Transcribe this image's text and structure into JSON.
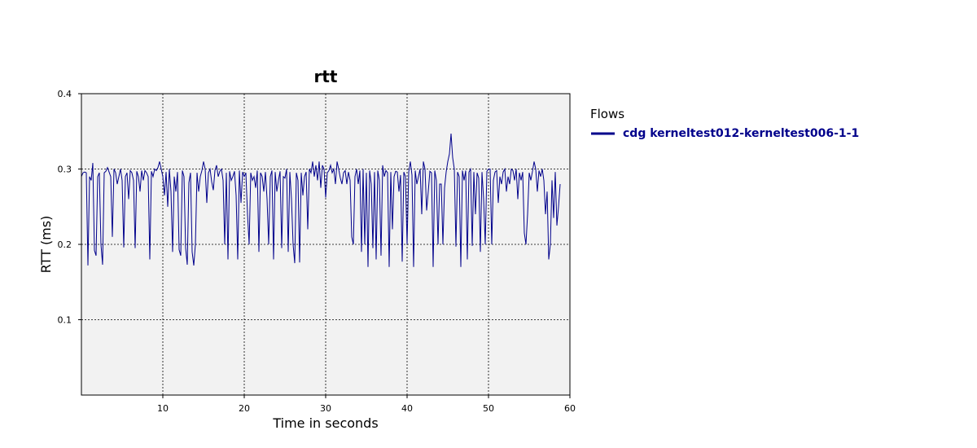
{
  "chart_data": {
    "type": "line",
    "title": "rtt",
    "xlabel": "Time in seconds",
    "ylabel": "RTT (ms)",
    "xlim": [
      0,
      60
    ],
    "ylim": [
      0,
      0.4
    ],
    "x_ticks": [
      "10",
      "20",
      "30",
      "40",
      "50",
      "60"
    ],
    "x_tick_values": [
      10,
      20,
      30,
      40,
      50,
      60
    ],
    "y_ticks": [
      "0.1",
      "0.2",
      "0.3",
      "0.4"
    ],
    "y_tick_values": [
      0.1,
      0.2,
      0.3,
      0.4
    ],
    "grid": true,
    "plot_background": "#f2f2f2",
    "legend": {
      "title": "Flows",
      "position": "right"
    },
    "series": [
      {
        "name": "cdg kerneltest012-kerneltest006-1-1",
        "color": "#00008b",
        "points": [
          [
            0.0,
            0.29
          ],
          [
            0.2,
            0.295
          ],
          [
            0.4,
            0.296
          ],
          [
            0.6,
            0.295
          ],
          [
            0.8,
            0.172
          ],
          [
            1.0,
            0.29
          ],
          [
            1.2,
            0.285
          ],
          [
            1.4,
            0.308
          ],
          [
            1.6,
            0.192
          ],
          [
            1.8,
            0.185
          ],
          [
            2.0,
            0.29
          ],
          [
            2.2,
            0.295
          ],
          [
            2.4,
            0.2
          ],
          [
            2.6,
            0.173
          ],
          [
            2.8,
            0.295
          ],
          [
            3.0,
            0.297
          ],
          [
            3.2,
            0.302
          ],
          [
            3.4,
            0.296
          ],
          [
            3.6,
            0.29
          ],
          [
            3.8,
            0.21
          ],
          [
            4.0,
            0.3
          ],
          [
            4.2,
            0.295
          ],
          [
            4.4,
            0.28
          ],
          [
            4.6,
            0.29
          ],
          [
            4.8,
            0.3
          ],
          [
            5.0,
            0.285
          ],
          [
            5.2,
            0.196
          ],
          [
            5.4,
            0.29
          ],
          [
            5.6,
            0.295
          ],
          [
            5.8,
            0.26
          ],
          [
            6.0,
            0.298
          ],
          [
            6.2,
            0.295
          ],
          [
            6.4,
            0.285
          ],
          [
            6.6,
            0.195
          ],
          [
            6.8,
            0.297
          ],
          [
            7.0,
            0.29
          ],
          [
            7.2,
            0.27
          ],
          [
            7.4,
            0.298
          ],
          [
            7.6,
            0.285
          ],
          [
            7.8,
            0.298
          ],
          [
            8.0,
            0.295
          ],
          [
            8.2,
            0.29
          ],
          [
            8.4,
            0.18
          ],
          [
            8.6,
            0.297
          ],
          [
            8.8,
            0.29
          ],
          [
            9.0,
            0.3
          ],
          [
            9.2,
            0.298
          ],
          [
            9.4,
            0.302
          ],
          [
            9.6,
            0.31
          ],
          [
            9.8,
            0.3
          ],
          [
            10.0,
            0.29
          ],
          [
            10.2,
            0.265
          ],
          [
            10.4,
            0.296
          ],
          [
            10.6,
            0.25
          ],
          [
            10.8,
            0.3
          ],
          [
            11.0,
            0.27
          ],
          [
            11.2,
            0.19
          ],
          [
            11.4,
            0.29
          ],
          [
            11.6,
            0.27
          ],
          [
            11.8,
            0.296
          ],
          [
            12.0,
            0.193
          ],
          [
            12.2,
            0.185
          ],
          [
            12.4,
            0.298
          ],
          [
            12.6,
            0.29
          ],
          [
            12.8,
            0.195
          ],
          [
            13.0,
            0.173
          ],
          [
            13.2,
            0.282
          ],
          [
            13.4,
            0.295
          ],
          [
            13.6,
            0.19
          ],
          [
            13.8,
            0.172
          ],
          [
            14.0,
            0.2
          ],
          [
            14.2,
            0.295
          ],
          [
            14.4,
            0.27
          ],
          [
            14.6,
            0.29
          ],
          [
            14.8,
            0.298
          ],
          [
            15.0,
            0.31
          ],
          [
            15.2,
            0.3
          ],
          [
            15.4,
            0.255
          ],
          [
            15.6,
            0.295
          ],
          [
            15.8,
            0.3
          ],
          [
            16.0,
            0.283
          ],
          [
            16.2,
            0.272
          ],
          [
            16.4,
            0.298
          ],
          [
            16.6,
            0.305
          ],
          [
            16.8,
            0.29
          ],
          [
            17.0,
            0.297
          ],
          [
            17.2,
            0.3
          ],
          [
            17.4,
            0.285
          ],
          [
            17.6,
            0.2
          ],
          [
            17.8,
            0.295
          ],
          [
            18.0,
            0.18
          ],
          [
            18.2,
            0.297
          ],
          [
            18.4,
            0.285
          ],
          [
            18.6,
            0.29
          ],
          [
            18.8,
            0.297
          ],
          [
            19.0,
            0.265
          ],
          [
            19.2,
            0.18
          ],
          [
            19.4,
            0.298
          ],
          [
            19.6,
            0.255
          ],
          [
            19.8,
            0.296
          ],
          [
            20.0,
            0.29
          ],
          [
            20.2,
            0.295
          ],
          [
            20.4,
            0.24
          ],
          [
            20.6,
            0.2
          ],
          [
            20.8,
            0.295
          ],
          [
            21.0,
            0.285
          ],
          [
            21.2,
            0.29
          ],
          [
            21.4,
            0.275
          ],
          [
            21.6,
            0.298
          ],
          [
            21.8,
            0.19
          ],
          [
            22.0,
            0.295
          ],
          [
            22.2,
            0.29
          ],
          [
            22.4,
            0.27
          ],
          [
            22.6,
            0.296
          ],
          [
            22.8,
            0.26
          ],
          [
            23.0,
            0.2
          ],
          [
            23.2,
            0.29
          ],
          [
            23.4,
            0.298
          ],
          [
            23.6,
            0.18
          ],
          [
            23.8,
            0.296
          ],
          [
            24.0,
            0.27
          ],
          [
            24.2,
            0.285
          ],
          [
            24.4,
            0.297
          ],
          [
            24.6,
            0.195
          ],
          [
            24.8,
            0.29
          ],
          [
            25.0,
            0.288
          ],
          [
            25.2,
            0.3
          ],
          [
            25.4,
            0.19
          ],
          [
            25.6,
            0.296
          ],
          [
            25.8,
            0.26
          ],
          [
            26.0,
            0.2
          ],
          [
            26.2,
            0.175
          ],
          [
            26.4,
            0.295
          ],
          [
            26.6,
            0.285
          ],
          [
            26.8,
            0.176
          ],
          [
            27.0,
            0.295
          ],
          [
            27.2,
            0.265
          ],
          [
            27.4,
            0.29
          ],
          [
            27.6,
            0.296
          ],
          [
            27.8,
            0.22
          ],
          [
            28.0,
            0.3
          ],
          [
            28.2,
            0.295
          ],
          [
            28.4,
            0.31
          ],
          [
            28.6,
            0.29
          ],
          [
            28.8,
            0.305
          ],
          [
            29.0,
            0.285
          ],
          [
            29.2,
            0.31
          ],
          [
            29.4,
            0.275
          ],
          [
            29.6,
            0.305
          ],
          [
            29.8,
            0.3
          ],
          [
            30.0,
            0.262
          ],
          [
            30.2,
            0.295
          ],
          [
            30.4,
            0.298
          ],
          [
            30.6,
            0.305
          ],
          [
            30.8,
            0.295
          ],
          [
            31.0,
            0.3
          ],
          [
            31.2,
            0.28
          ],
          [
            31.4,
            0.31
          ],
          [
            31.6,
            0.3
          ],
          [
            31.8,
            0.288
          ],
          [
            32.0,
            0.28
          ],
          [
            32.2,
            0.295
          ],
          [
            32.4,
            0.298
          ],
          [
            32.6,
            0.28
          ],
          [
            32.8,
            0.296
          ],
          [
            33.0,
            0.285
          ],
          [
            33.2,
            0.21
          ],
          [
            33.4,
            0.2
          ],
          [
            33.6,
            0.29
          ],
          [
            33.8,
            0.3
          ],
          [
            34.0,
            0.28
          ],
          [
            34.2,
            0.298
          ],
          [
            34.4,
            0.19
          ],
          [
            34.6,
            0.3
          ],
          [
            34.8,
            0.2
          ],
          [
            35.0,
            0.295
          ],
          [
            35.2,
            0.17
          ],
          [
            35.4,
            0.298
          ],
          [
            35.6,
            0.28
          ],
          [
            35.8,
            0.195
          ],
          [
            36.0,
            0.296
          ],
          [
            36.2,
            0.18
          ],
          [
            36.4,
            0.298
          ],
          [
            36.6,
            0.285
          ],
          [
            36.8,
            0.185
          ],
          [
            37.0,
            0.305
          ],
          [
            37.2,
            0.29
          ],
          [
            37.4,
            0.298
          ],
          [
            37.6,
            0.295
          ],
          [
            37.8,
            0.17
          ],
          [
            38.0,
            0.296
          ],
          [
            38.2,
            0.22
          ],
          [
            38.4,
            0.29
          ],
          [
            38.6,
            0.297
          ],
          [
            38.8,
            0.296
          ],
          [
            39.0,
            0.27
          ],
          [
            39.2,
            0.292
          ],
          [
            39.4,
            0.177
          ],
          [
            39.6,
            0.296
          ],
          [
            39.8,
            0.29
          ],
          [
            40.0,
            0.2
          ],
          [
            40.2,
            0.296
          ],
          [
            40.4,
            0.31
          ],
          [
            40.6,
            0.292
          ],
          [
            40.8,
            0.17
          ],
          [
            41.0,
            0.298
          ],
          [
            41.2,
            0.28
          ],
          [
            41.4,
            0.29
          ],
          [
            41.6,
            0.3
          ],
          [
            41.8,
            0.24
          ],
          [
            42.0,
            0.31
          ],
          [
            42.2,
            0.3
          ],
          [
            42.4,
            0.245
          ],
          [
            42.6,
            0.27
          ],
          [
            42.8,
            0.297
          ],
          [
            43.0,
            0.295
          ],
          [
            43.2,
            0.17
          ],
          [
            43.4,
            0.298
          ],
          [
            43.6,
            0.285
          ],
          [
            43.8,
            0.2
          ],
          [
            44.0,
            0.28
          ],
          [
            44.2,
            0.28
          ],
          [
            44.4,
            0.2
          ],
          [
            44.6,
            0.275
          ],
          [
            44.8,
            0.296
          ],
          [
            45.0,
            0.31
          ],
          [
            45.2,
            0.32
          ],
          [
            45.4,
            0.347
          ],
          [
            45.6,
            0.315
          ],
          [
            45.8,
            0.3
          ],
          [
            46.0,
            0.197
          ],
          [
            46.2,
            0.296
          ],
          [
            46.4,
            0.29
          ],
          [
            46.6,
            0.17
          ],
          [
            46.8,
            0.298
          ],
          [
            47.0,
            0.285
          ],
          [
            47.2,
            0.298
          ],
          [
            47.4,
            0.18
          ],
          [
            47.6,
            0.296
          ],
          [
            47.8,
            0.3
          ],
          [
            48.0,
            0.198
          ],
          [
            48.2,
            0.296
          ],
          [
            48.4,
            0.24
          ],
          [
            48.6,
            0.295
          ],
          [
            48.8,
            0.288
          ],
          [
            49.0,
            0.19
          ],
          [
            49.2,
            0.296
          ],
          [
            49.4,
            0.26
          ],
          [
            49.6,
            0.2
          ],
          [
            49.8,
            0.297
          ],
          [
            50.0,
            0.3
          ],
          [
            50.2,
            0.3
          ],
          [
            50.4,
            0.2
          ],
          [
            50.6,
            0.285
          ],
          [
            50.8,
            0.296
          ],
          [
            51.0,
            0.298
          ],
          [
            51.2,
            0.255
          ],
          [
            51.4,
            0.29
          ],
          [
            51.6,
            0.28
          ],
          [
            51.8,
            0.296
          ],
          [
            52.0,
            0.3
          ],
          [
            52.2,
            0.27
          ],
          [
            52.4,
            0.29
          ],
          [
            52.6,
            0.28
          ],
          [
            52.8,
            0.3
          ],
          [
            53.0,
            0.298
          ],
          [
            53.2,
            0.285
          ],
          [
            53.4,
            0.3
          ],
          [
            53.6,
            0.26
          ],
          [
            53.8,
            0.295
          ],
          [
            54.0,
            0.285
          ],
          [
            54.2,
            0.296
          ],
          [
            54.4,
            0.215
          ],
          [
            54.6,
            0.2
          ],
          [
            54.8,
            0.24
          ],
          [
            55.0,
            0.295
          ],
          [
            55.2,
            0.285
          ],
          [
            55.4,
            0.297
          ],
          [
            55.6,
            0.31
          ],
          [
            55.8,
            0.3
          ],
          [
            56.0,
            0.27
          ],
          [
            56.2,
            0.298
          ],
          [
            56.4,
            0.29
          ],
          [
            56.6,
            0.3
          ],
          [
            56.8,
            0.285
          ],
          [
            57.0,
            0.24
          ],
          [
            57.2,
            0.27
          ],
          [
            57.4,
            0.18
          ],
          [
            57.6,
            0.2
          ],
          [
            57.8,
            0.285
          ],
          [
            58.0,
            0.235
          ],
          [
            58.2,
            0.296
          ],
          [
            58.4,
            0.225
          ],
          [
            58.6,
            0.25
          ],
          [
            58.8,
            0.28
          ]
        ]
      }
    ]
  }
}
